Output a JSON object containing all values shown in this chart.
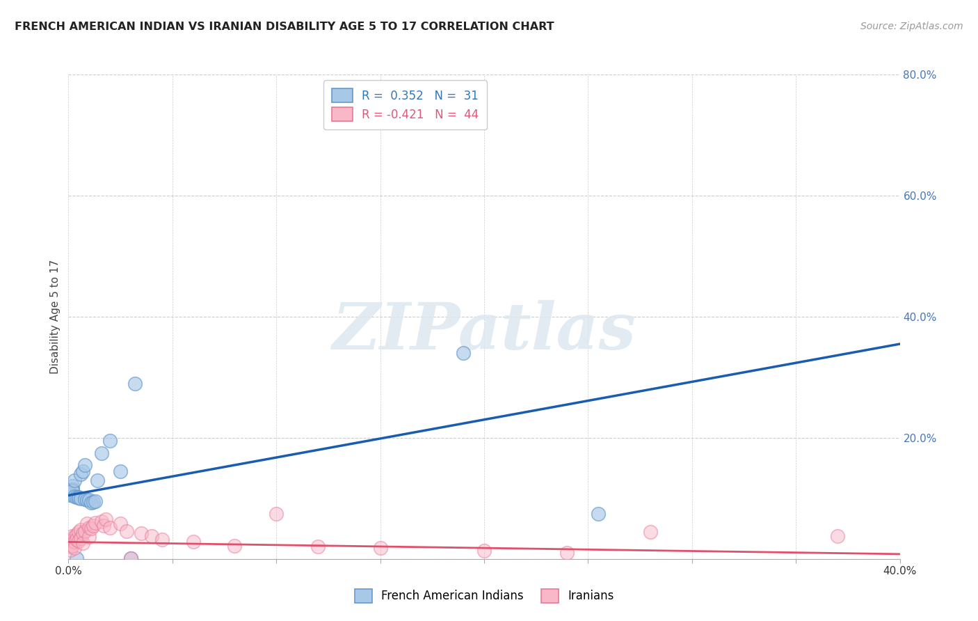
{
  "title": "FRENCH AMERICAN INDIAN VS IRANIAN DISABILITY AGE 5 TO 17 CORRELATION CHART",
  "source": "Source: ZipAtlas.com",
  "ylabel": "Disability Age 5 to 17",
  "xlim": [
    0.0,
    0.4
  ],
  "ylim": [
    0.0,
    0.8
  ],
  "blue_color": "#a8c8e8",
  "blue_edge_color": "#6699cc",
  "pink_color": "#f8b8c8",
  "pink_edge_color": "#e87898",
  "blue_line_color": "#1a5cb0",
  "pink_line_color": "#e0506a",
  "watermark_text": "ZIPatlas",
  "watermark_color": "#dde8f0",
  "legend1_label1": "R =  0.352   N =  31",
  "legend1_label2": "R = -0.421   N =  44",
  "legend1_color1": "#3377bb",
  "legend1_color2": "#e05878",
  "legend2_label1": "French American Indians",
  "legend2_label2": "Iranians",
  "blue_line_x0": 0.0,
  "blue_line_y0": 0.105,
  "blue_line_x1": 0.4,
  "blue_line_y1": 0.355,
  "pink_line_x0": 0.0,
  "pink_line_y0": 0.028,
  "pink_line_x1": 0.4,
  "pink_line_y1": 0.008,
  "blue_scatter_x": [
    0.001,
    0.001,
    0.001,
    0.001,
    0.002,
    0.002,
    0.002,
    0.003,
    0.003,
    0.004,
    0.004,
    0.005,
    0.005,
    0.006,
    0.006,
    0.007,
    0.008,
    0.008,
    0.009,
    0.01,
    0.011,
    0.012,
    0.013,
    0.014,
    0.016,
    0.02,
    0.025,
    0.03,
    0.032,
    0.19,
    0.255
  ],
  "blue_scatter_y": [
    0.11,
    0.108,
    0.107,
    0.105,
    0.12,
    0.115,
    0.112,
    0.13,
    0.103,
    0.102,
    0.001,
    0.102,
    0.101,
    0.1,
    0.14,
    0.145,
    0.099,
    0.155,
    0.098,
    0.097,
    0.093,
    0.094,
    0.095,
    0.13,
    0.175,
    0.195,
    0.145,
    0.001,
    0.29,
    0.34,
    0.075
  ],
  "pink_scatter_x": [
    0.001,
    0.001,
    0.001,
    0.001,
    0.002,
    0.002,
    0.002,
    0.003,
    0.003,
    0.003,
    0.004,
    0.004,
    0.005,
    0.005,
    0.006,
    0.006,
    0.007,
    0.007,
    0.008,
    0.009,
    0.01,
    0.01,
    0.011,
    0.012,
    0.013,
    0.016,
    0.017,
    0.018,
    0.02,
    0.025,
    0.028,
    0.03,
    0.035,
    0.04,
    0.045,
    0.06,
    0.08,
    0.1,
    0.12,
    0.15,
    0.2,
    0.24,
    0.28,
    0.37
  ],
  "pink_scatter_y": [
    0.03,
    0.025,
    0.02,
    0.015,
    0.038,
    0.03,
    0.022,
    0.036,
    0.028,
    0.018,
    0.04,
    0.032,
    0.045,
    0.03,
    0.048,
    0.034,
    0.042,
    0.026,
    0.046,
    0.058,
    0.052,
    0.036,
    0.05,
    0.055,
    0.06,
    0.062,
    0.055,
    0.065,
    0.052,
    0.058,
    0.046,
    0.001,
    0.042,
    0.038,
    0.032,
    0.028,
    0.022,
    0.075,
    0.02,
    0.018,
    0.014,
    0.01,
    0.045,
    0.038
  ]
}
